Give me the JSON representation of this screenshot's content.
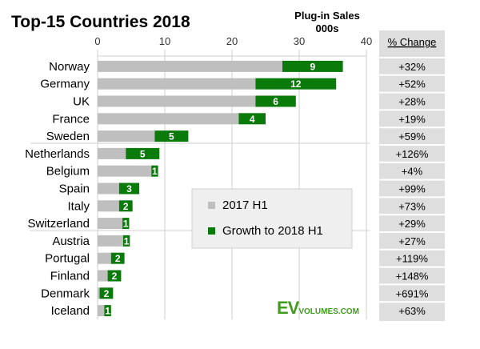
{
  "title": "Top-15 Countries 2018",
  "unit_label_line1": "Plug-in Sales",
  "unit_label_line2": "000s",
  "change_header": "% Change",
  "watermark_big": "EV",
  "watermark_small": "VOLUMES.COM",
  "chart_data": {
    "type": "bar",
    "orientation": "horizontal",
    "stacked": true,
    "categories": [
      "Norway",
      "Germany",
      "UK",
      "France",
      "Sweden",
      "Netherlands",
      "Belgium",
      "Spain",
      "Italy",
      "Switzerland",
      "Austria",
      "Portugal",
      "Finland",
      "Denmark",
      "Iceland"
    ],
    "series": [
      {
        "name": "2017 H1",
        "color": "#bfbfbf",
        "values": [
          27.5,
          23.5,
          23.5,
          21,
          8.5,
          4.2,
          8,
          3.2,
          3.2,
          3.7,
          3.8,
          2,
          1.5,
          0.3,
          1
        ]
      },
      {
        "name": "Growth to 2018 H1",
        "color": "#0a7a0a",
        "values": [
          9,
          12,
          6,
          4,
          5,
          5,
          1,
          3,
          2,
          1,
          1,
          2,
          2,
          2,
          1
        ]
      }
    ],
    "pct_change": [
      "+32%",
      "+52%",
      "+28%",
      "+19%",
      "+59%",
      "+126%",
      "+4%",
      "+99%",
      "+73%",
      "+29%",
      "+27%",
      "+119%",
      "+148%",
      "+691%",
      "+63%"
    ],
    "x_ticks": [
      0,
      10,
      20,
      30,
      40
    ],
    "xlim": [
      0,
      40
    ],
    "grid": true,
    "legend_position": "center-right"
  }
}
